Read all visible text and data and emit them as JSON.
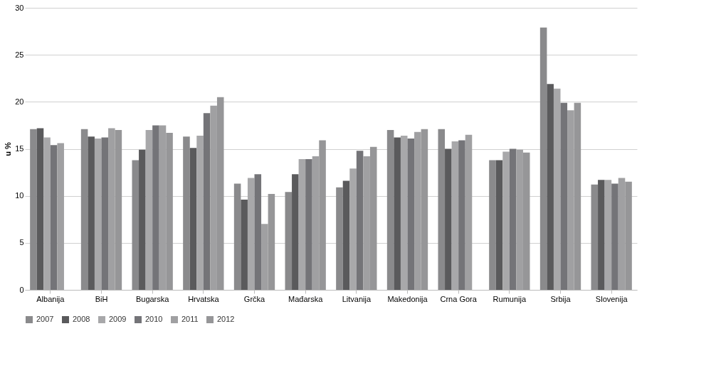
{
  "chart_data": {
    "type": "bar",
    "ylabel": "u %",
    "categories": [
      "Albanija",
      "BiH",
      "Bugarska",
      "Hrvatska",
      "Grčka",
      "Mađarska",
      "Litvanija",
      "Makedonija",
      "Crna Gora",
      "Rumunija",
      "Srbija",
      "Slovenija"
    ],
    "series": [
      {
        "name": "2007",
        "color": "#8a8a8c",
        "values": [
          17.1,
          17.1,
          13.8,
          16.3,
          11.3,
          10.4,
          10.9,
          17.0,
          17.1,
          13.8,
          27.9,
          11.2
        ]
      },
      {
        "name": "2008",
        "color": "#5a5a5c",
        "values": [
          17.2,
          16.3,
          14.9,
          15.1,
          9.6,
          12.3,
          11.6,
          16.2,
          15.0,
          13.8,
          21.9,
          11.7
        ]
      },
      {
        "name": "2009",
        "color": "#a8a8aa",
        "values": [
          16.2,
          16.1,
          17.0,
          16.4,
          11.9,
          13.9,
          12.9,
          16.4,
          15.8,
          14.7,
          21.4,
          11.7
        ]
      },
      {
        "name": "2010",
        "color": "#747478",
        "values": [
          15.4,
          16.2,
          17.5,
          18.8,
          12.3,
          13.9,
          14.8,
          16.1,
          15.9,
          15.0,
          19.9,
          11.3
        ]
      },
      {
        "name": "2011",
        "color": "#a0a0a2",
        "values": [
          15.6,
          17.2,
          17.5,
          19.6,
          7.0,
          14.2,
          14.2,
          16.8,
          16.5,
          14.9,
          19.1,
          11.9
        ]
      },
      {
        "name": "2012",
        "color": "#969698",
        "values": [
          null,
          17.0,
          16.7,
          20.5,
          10.2,
          15.9,
          15.2,
          17.1,
          null,
          14.6,
          19.9,
          11.5
        ]
      }
    ],
    "ylim": [
      0,
      30
    ],
    "yticks": [
      0,
      5,
      10,
      15,
      20,
      25,
      30
    ],
    "grid": "y",
    "legend": "bottom"
  }
}
